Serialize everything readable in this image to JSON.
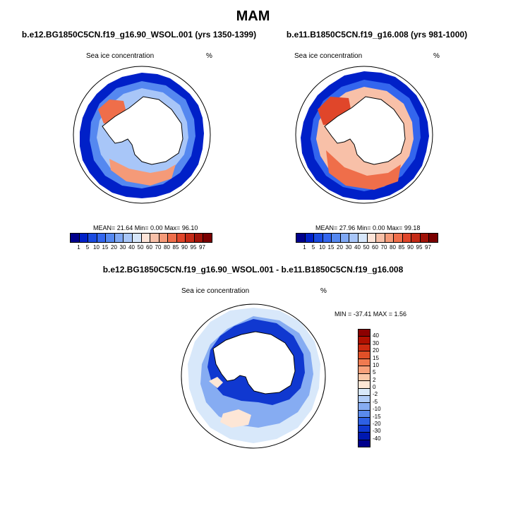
{
  "title": "MAM",
  "panels": [
    {
      "title": "b.e12.BG1850C5CN.f19_g16.90_WSOL.001 (yrs 1350-1399)",
      "var_label": "Sea ice concentration",
      "units": "%",
      "stats": "MEAN=  21.64  Min=   0.00  Max=  96.10"
    },
    {
      "title": "b.e11.B1850C5CN.f19_g16.008 (yrs 981-1000)",
      "var_label": "Sea ice concentration",
      "units": "%",
      "stats": "MEAN=  27.96  Min=   0.00  Max=  99.18"
    }
  ],
  "diff_panel": {
    "title": "b.e12.BG1850C5CN.f19_g16.90_WSOL.001 - b.e11.B1850C5CN.f19_g16.008",
    "var_label": "Sea ice concentration",
    "units": "%",
    "stats": "MIN = -37.41 MAX =   1.56"
  },
  "colorbar_levels": [
    "1",
    "5",
    "10",
    "15",
    "20",
    "30",
    "40",
    "50",
    "60",
    "70",
    "80",
    "85",
    "90",
    "95",
    "97"
  ],
  "colorbar_colors": [
    "#00008c",
    "#0020c8",
    "#1a4ae0",
    "#3366ee",
    "#5588f0",
    "#7fa8f4",
    "#a8c6f8",
    "#d6e6fa",
    "#fde4d8",
    "#f8c0a8",
    "#f59a78",
    "#ef6e4a",
    "#e0462a",
    "#c42a16",
    "#a01208",
    "#7a0000"
  ],
  "diff_levels": [
    "40",
    "30",
    "20",
    "15",
    "10",
    "5",
    "2",
    "0",
    "-2",
    "-5",
    "-10",
    "-15",
    "-20",
    "-30",
    "-40"
  ],
  "diff_colors": [
    "#8c0000",
    "#b01000",
    "#cc2a10",
    "#e05028",
    "#f07a50",
    "#f8a07a",
    "#fcc8a8",
    "#fde6d6",
    "#d8e8fa",
    "#b0ccf8",
    "#86acf2",
    "#5a8aec",
    "#2e60e4",
    "#1038d0",
    "#0018b0",
    "#00008c"
  ]
}
